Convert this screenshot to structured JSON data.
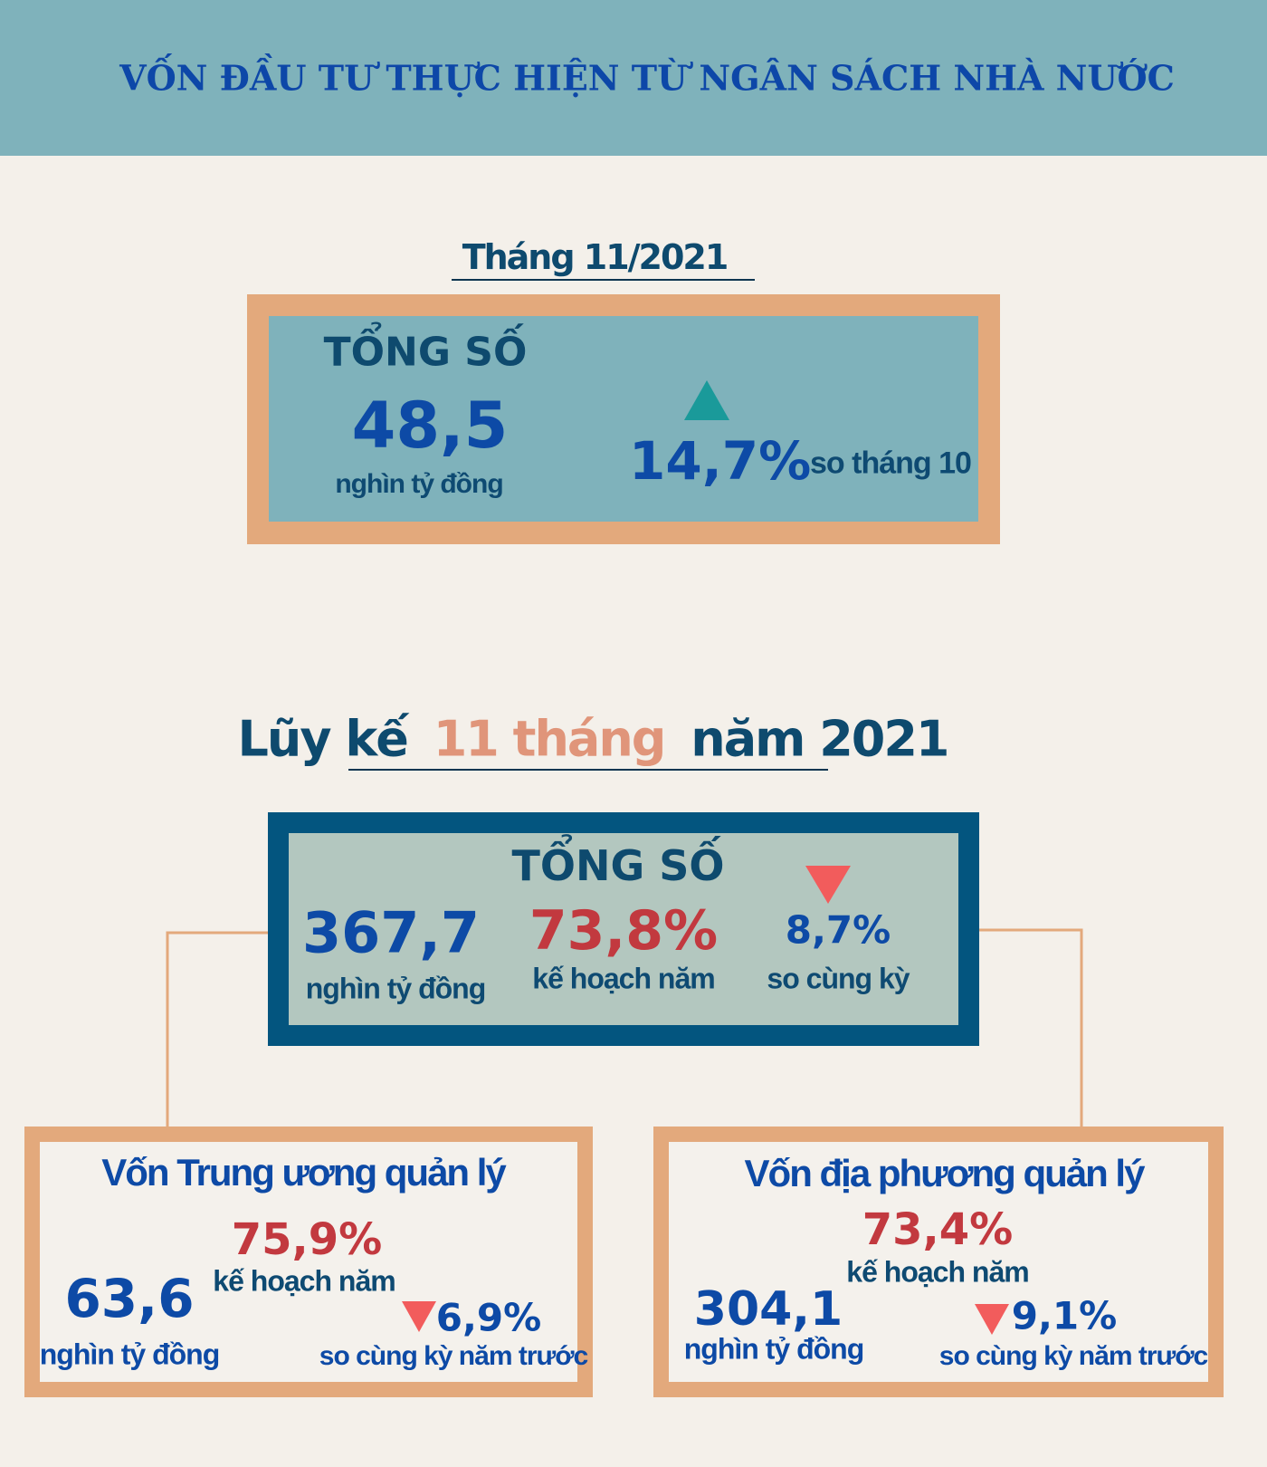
{
  "header": {
    "title": "VỐN ĐẦU TƯ THỰC HIỆN TỪ NGÂN SÁCH NHÀ NƯỚC"
  },
  "monthly": {
    "heading": "Tháng 11/2021",
    "label": "TỔNG SỐ",
    "value": "48,5",
    "unit": "nghìn tỷ đồng",
    "change": "14,7%",
    "change_note": "so tháng 10"
  },
  "cumulative": {
    "heading": [
      "Lũy kế",
      "11 tháng",
      "năm 2021"
    ],
    "label": "TỔNG SỐ",
    "value": "367,7",
    "unit": "nghìn tỷ đồng",
    "plan": "73,8%",
    "plan_note": "kế hoạch năm",
    "change": "8,7%",
    "change_note": "so cùng kỳ"
  },
  "central": {
    "title": "Vốn Trung ương quản lý",
    "plan": "75,9%",
    "plan_note": "kế hoạch năm",
    "value": "63,6",
    "unit": "nghìn tỷ đồng",
    "change": "6,9%",
    "change_note": "so cùng kỳ năm trước"
  },
  "local": {
    "title": "Vốn địa phương quản lý",
    "plan": "73,4%",
    "plan_note": "kế hoạch năm",
    "value": "304,1",
    "unit": "nghìn tỷ đồng",
    "change": "9,1%",
    "change_note": "so cùng kỳ năm trước"
  }
}
